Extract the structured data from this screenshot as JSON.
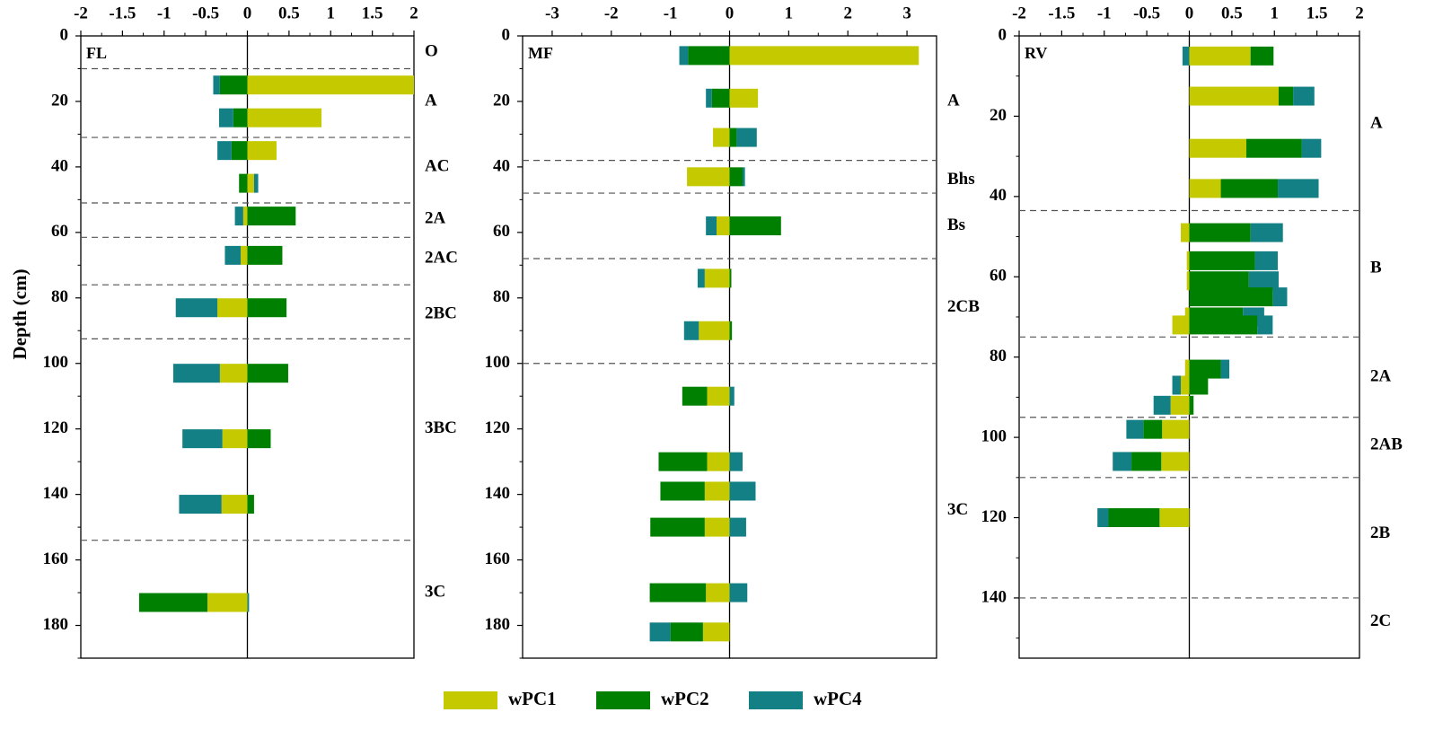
{
  "chart_data": [
    {
      "type": "bar",
      "orientation": "horizontal-stacked",
      "panel": "FL",
      "ylabel": "Depth (cm)",
      "xlim": [
        -2,
        2
      ],
      "x_ticks": [
        -2,
        -1.5,
        -1,
        -0.5,
        0,
        0.5,
        1,
        1.5,
        2
      ],
      "x_tick_labels": [
        "-2",
        "-1.5",
        "-1",
        "-0.5",
        "0",
        "0.5",
        "1",
        "1.5",
        "2"
      ],
      "ylim": [
        0,
        190
      ],
      "y_ticks": [
        0,
        20,
        40,
        60,
        80,
        100,
        120,
        140,
        160,
        180
      ],
      "y_tick_labels": [
        "0",
        "20",
        "40",
        "60",
        "80",
        "100",
        "120",
        "140",
        "160",
        "180"
      ],
      "bars": [
        {
          "depth": 15,
          "wPC1": 2.0,
          "wPC2": -0.33,
          "wPC4": -0.08
        },
        {
          "depth": 25,
          "wPC1": 0.89,
          "wPC2": -0.17,
          "wPC4": -0.17
        },
        {
          "depth": 35,
          "wPC1": 0.35,
          "wPC2": -0.19,
          "wPC4": -0.17
        },
        {
          "depth": 45,
          "wPC1": 0.08,
          "wPC2": -0.1,
          "wPC4": 0.05
        },
        {
          "depth": 55,
          "wPC1": -0.05,
          "wPC2": 0.58,
          "wPC4": -0.1
        },
        {
          "depth": 67,
          "wPC1": -0.08,
          "wPC2": 0.42,
          "wPC4": -0.19
        },
        {
          "depth": 83,
          "wPC1": -0.36,
          "wPC2": 0.47,
          "wPC4": -0.5
        },
        {
          "depth": 103,
          "wPC1": -0.33,
          "wPC2": 0.49,
          "wPC4": -0.56
        },
        {
          "depth": 123,
          "wPC1": -0.3,
          "wPC2": 0.28,
          "wPC4": -0.48
        },
        {
          "depth": 143,
          "wPC1": -0.31,
          "wPC2": 0.08,
          "wPC4": -0.51
        },
        {
          "depth": 173,
          "wPC1": -0.48,
          "wPC2": -0.82,
          "wPC4": 0.02
        }
      ],
      "boundaries": [
        10,
        31,
        51,
        61.5,
        76,
        92.5,
        154
      ],
      "horizons": [
        {
          "label": "O",
          "depth": 5
        },
        {
          "label": "A",
          "depth": 20
        },
        {
          "label": "AC",
          "depth": 40
        },
        {
          "label": "2A",
          "depth": 56
        },
        {
          "label": "2AC",
          "depth": 68
        },
        {
          "label": "2BC",
          "depth": 85
        },
        {
          "label": "3BC",
          "depth": 120
        },
        {
          "label": "3C",
          "depth": 170
        }
      ]
    },
    {
      "type": "bar",
      "orientation": "horizontal-stacked",
      "panel": "MF",
      "xlim": [
        -3.5,
        3.5
      ],
      "x_ticks": [
        -3,
        -2,
        -1,
        0,
        1,
        2,
        3
      ],
      "x_tick_labels": [
        "-3",
        "-2",
        "-1",
        "0",
        "1",
        "2",
        "3"
      ],
      "ylim": [
        0,
        190
      ],
      "y_ticks": [
        0,
        20,
        40,
        60,
        80,
        100,
        120,
        140,
        160,
        180
      ],
      "y_tick_labels": [
        "0",
        "20",
        "40",
        "60",
        "80",
        "100",
        "120",
        "140",
        "160",
        "180"
      ],
      "bars": [
        {
          "depth": 6,
          "wPC1": 3.2,
          "wPC2": -0.7,
          "wPC4": -0.15
        },
        {
          "depth": 19,
          "wPC1": 0.48,
          "wPC2": -0.3,
          "wPC4": -0.1
        },
        {
          "depth": 31,
          "wPC1": -0.28,
          "wPC2": 0.12,
          "wPC4": 0.34
        },
        {
          "depth": 43,
          "wPC1": -0.72,
          "wPC2": 0.22,
          "wPC4": 0.04
        },
        {
          "depth": 58,
          "wPC1": -0.22,
          "wPC2": 0.87,
          "wPC4": -0.18
        },
        {
          "depth": 74,
          "wPC1": -0.42,
          "wPC2": 0.03,
          "wPC4": -0.12
        },
        {
          "depth": 90,
          "wPC1": -0.52,
          "wPC2": 0.04,
          "wPC4": -0.25
        },
        {
          "depth": 110,
          "wPC1": -0.38,
          "wPC2": -0.42,
          "wPC4": 0.08
        },
        {
          "depth": 130,
          "wPC1": -0.38,
          "wPC2": -0.82,
          "wPC4": 0.22
        },
        {
          "depth": 139,
          "wPC1": -0.42,
          "wPC2": -0.75,
          "wPC4": 0.44
        },
        {
          "depth": 150,
          "wPC1": -0.42,
          "wPC2": -0.92,
          "wPC4": 0.28
        },
        {
          "depth": 170,
          "wPC1": -0.4,
          "wPC2": -0.95,
          "wPC4": 0.3
        },
        {
          "depth": 182,
          "wPC1": -0.45,
          "wPC2": -0.55,
          "wPC4": -0.35
        }
      ],
      "boundaries": [
        38,
        48,
        68,
        100
      ],
      "horizons": [
        {
          "label": "A",
          "depth": 20
        },
        {
          "label": "Bhs",
          "depth": 44
        },
        {
          "label": "Bs",
          "depth": 58
        },
        {
          "label": "2CB",
          "depth": 83
        },
        {
          "label": "3C",
          "depth": 145
        }
      ]
    },
    {
      "type": "bar",
      "orientation": "horizontal-stacked",
      "panel": "RV",
      "xlim": [
        -2,
        2
      ],
      "x_ticks": [
        -2,
        -1.5,
        -1,
        -0.5,
        0,
        0.5,
        1,
        1.5,
        2
      ],
      "x_tick_labels": [
        "-2",
        "-1.5",
        "-1",
        "-0.5",
        "0",
        "0.5",
        "1",
        "1.5",
        "2"
      ],
      "ylim": [
        0,
        155
      ],
      "y_ticks": [
        0,
        20,
        40,
        60,
        80,
        100,
        120,
        140
      ],
      "y_tick_labels": [
        "0",
        "20",
        "40",
        "60",
        "80",
        "100",
        "120",
        "140"
      ],
      "bars": [
        {
          "depth": 5,
          "wPC1": 0.72,
          "wPC2": 0.27,
          "wPC4": -0.08
        },
        {
          "depth": 15,
          "wPC1": 1.05,
          "wPC2": 0.17,
          "wPC4": 0.25
        },
        {
          "depth": 28,
          "wPC1": 0.67,
          "wPC2": 0.65,
          "wPC4": 0.23
        },
        {
          "depth": 38,
          "wPC1": 0.37,
          "wPC2": 0.67,
          "wPC4": 0.48
        },
        {
          "depth": 49,
          "wPC1": -0.1,
          "wPC2": 0.72,
          "wPC4": 0.38
        },
        {
          "depth": 56,
          "wPC1": -0.03,
          "wPC2": 0.77,
          "wPC4": 0.27
        },
        {
          "depth": 61,
          "wPC1": -0.03,
          "wPC2": 0.7,
          "wPC4": 0.35
        },
        {
          "depth": 65,
          "wPC1": 0.0,
          "wPC2": 0.98,
          "wPC4": 0.17
        },
        {
          "depth": 70,
          "wPC1": -0.05,
          "wPC2": 0.63,
          "wPC4": 0.25
        },
        {
          "depth": 72,
          "wPC1": -0.2,
          "wPC2": 0.8,
          "wPC4": 0.18
        },
        {
          "depth": 83,
          "wPC1": -0.05,
          "wPC2": 0.37,
          "wPC4": 0.1
        },
        {
          "depth": 87,
          "wPC1": -0.1,
          "wPC2": 0.22,
          "wPC4": -0.1
        },
        {
          "depth": 92,
          "wPC1": -0.22,
          "wPC2": 0.05,
          "wPC4": -0.2
        },
        {
          "depth": 98,
          "wPC1": -0.32,
          "wPC2": -0.22,
          "wPC4": -0.2
        },
        {
          "depth": 106,
          "wPC1": -0.33,
          "wPC2": -0.35,
          "wPC4": -0.22
        },
        {
          "depth": 120,
          "wPC1": -0.35,
          "wPC2": -0.6,
          "wPC4": -0.13
        }
      ],
      "boundaries": [
        43.5,
        75,
        95,
        110,
        140
      ],
      "horizons": [
        {
          "label": "A",
          "depth": 22
        },
        {
          "label": "B",
          "depth": 58
        },
        {
          "label": "2A",
          "depth": 85
        },
        {
          "label": "2AB",
          "depth": 102
        },
        {
          "label": "2B",
          "depth": 124
        },
        {
          "label": "2C",
          "depth": 146
        }
      ]
    }
  ],
  "legend": {
    "placement": "bottom-center",
    "items": [
      {
        "key": "wPC1",
        "label": "wPC1",
        "color": "#c4c900"
      },
      {
        "key": "wPC2",
        "label": "wPC2",
        "color": "#008000"
      },
      {
        "key": "wPC4",
        "label": "wPC4",
        "color": "#138086"
      }
    ]
  },
  "colors": {
    "wPC1": "#c4c900",
    "wPC2": "#008000",
    "wPC4": "#138086"
  }
}
